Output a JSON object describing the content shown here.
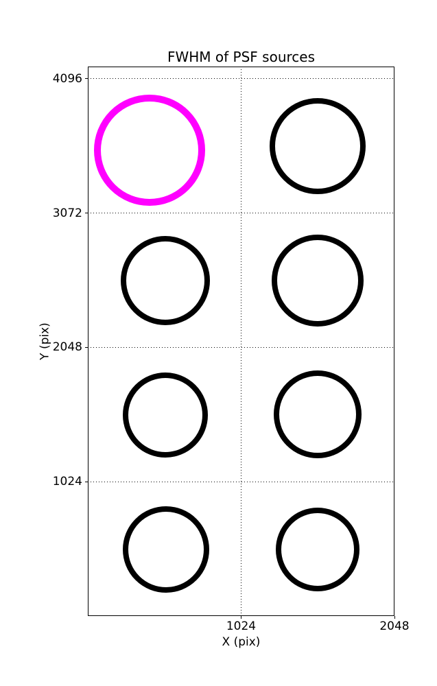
{
  "chart_data": {
    "type": "scatter",
    "title": "FWHM of PSF sources",
    "xlabel": "X (pix)",
    "ylabel": "Y (pix)",
    "xlim": [
      0,
      2048
    ],
    "ylim": [
      0,
      4190
    ],
    "xticks": [
      "1024",
      "2048"
    ],
    "yticks": [
      "1024",
      "2048",
      "3072",
      "4096"
    ],
    "grid": "dotted",
    "legend": "none",
    "points": [
      {
        "x": 412,
        "y": 3550,
        "radius_px": 81,
        "stroke_px": 10,
        "color": "#FF00FF",
        "highlight": true
      },
      {
        "x": 1536,
        "y": 3582,
        "radius_px": 70,
        "stroke_px": 8,
        "color": "#000000",
        "highlight": false
      },
      {
        "x": 518,
        "y": 2560,
        "radius_px": 65,
        "stroke_px": 8,
        "color": "#000000",
        "highlight": false
      },
      {
        "x": 1536,
        "y": 2558,
        "radius_px": 67,
        "stroke_px": 8,
        "color": "#000000",
        "highlight": false
      },
      {
        "x": 518,
        "y": 1534,
        "radius_px": 62,
        "stroke_px": 8,
        "color": "#000000",
        "highlight": false
      },
      {
        "x": 1534,
        "y": 1536,
        "radius_px": 64,
        "stroke_px": 8,
        "color": "#000000",
        "highlight": false
      },
      {
        "x": 523,
        "y": 508,
        "radius_px": 63,
        "stroke_px": 8,
        "color": "#000000",
        "highlight": false
      },
      {
        "x": 1536,
        "y": 508,
        "radius_px": 61,
        "stroke_px": 8,
        "color": "#000000",
        "highlight": false
      }
    ]
  },
  "colors": {
    "highlight": "#FF00FF",
    "normal": "#000000",
    "background": "#FFFFFF"
  }
}
